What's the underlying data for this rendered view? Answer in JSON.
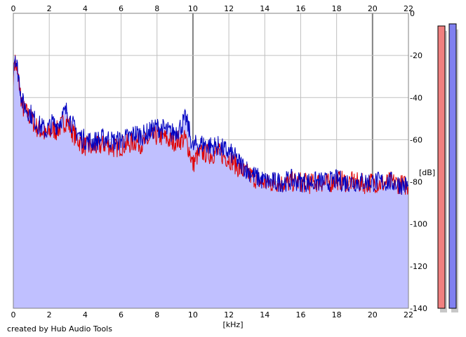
{
  "footer": {
    "credit": "created by Hub Audio Tools"
  },
  "chart_data": {
    "type": "line",
    "title": "",
    "xlabel": "[kHz]",
    "ylabel": "[dB]",
    "xlim": [
      0,
      22
    ],
    "ylim": [
      -140,
      0
    ],
    "x_ticks": [
      0,
      2,
      4,
      6,
      8,
      10,
      12,
      14,
      16,
      18,
      20,
      22
    ],
    "y_ticks": [
      0,
      -20,
      -40,
      -60,
      -80,
      -100,
      -120,
      -140
    ],
    "grid": true,
    "colors": {
      "red_series": "#e00000",
      "blue_series": "#0000c0",
      "fill": "#c0c0ff",
      "meter_red": "#f08080",
      "meter_blue": "#8080f0"
    },
    "series": [
      {
        "values_x": [
          0,
          0.1,
          0.2,
          0.3,
          0.4,
          0.5,
          0.6,
          0.8,
          1.0,
          1.2,
          1.4,
          1.6,
          1.8,
          2.0,
          2.2,
          2.4,
          2.6,
          2.8,
          3.0,
          3.2,
          3.4,
          3.6,
          3.8,
          4.0,
          4.4,
          4.8,
          5.2,
          5.6,
          6.0,
          6.4,
          6.8,
          7.2,
          7.6,
          8.0,
          8.4,
          8.8,
          9.2,
          9.6,
          9.8,
          10.0,
          10.2,
          10.6,
          11.0,
          11.4,
          11.8,
          12.2,
          12.6,
          13.0,
          13.4,
          13.8,
          14.2,
          14.6,
          15.0,
          15.5,
          16.0,
          16.5,
          17.0,
          17.5,
          18.0,
          18.5,
          19.0,
          19.5,
          20.0,
          20.5,
          21.0,
          21.5,
          22.0
        ],
        "values_y": [
          -30,
          -22,
          -28,
          -32,
          -38,
          -44,
          -46,
          -48,
          -50,
          -53,
          -55,
          -56,
          -58,
          -57,
          -55,
          -56,
          -54,
          -52,
          -51,
          -55,
          -58,
          -60,
          -62,
          -63,
          -64,
          -63,
          -62,
          -64,
          -63,
          -62,
          -61,
          -62,
          -60,
          -58,
          -59,
          -61,
          -60,
          -60,
          -65,
          -72,
          -68,
          -66,
          -67,
          -66,
          -68,
          -70,
          -74,
          -76,
          -78,
          -80,
          -81,
          -80,
          -81,
          -80,
          -80,
          -81,
          -80,
          -81,
          -79,
          -80,
          -80,
          -81,
          -80,
          -81,
          -80,
          -81,
          -82
        ]
      },
      {
        "values_x": [
          0,
          0.1,
          0.2,
          0.3,
          0.4,
          0.5,
          0.6,
          0.8,
          1.0,
          1.2,
          1.4,
          1.6,
          1.8,
          2.0,
          2.2,
          2.4,
          2.6,
          2.8,
          3.0,
          3.2,
          3.4,
          3.6,
          3.8,
          4.0,
          4.4,
          4.8,
          5.2,
          5.6,
          6.0,
          6.4,
          6.8,
          7.2,
          7.6,
          8.0,
          8.4,
          8.8,
          9.2,
          9.6,
          9.8,
          10.0,
          10.2,
          10.6,
          11.0,
          11.4,
          11.8,
          12.2,
          12.6,
          13.0,
          13.4,
          13.8,
          14.2,
          14.6,
          15.0,
          15.5,
          16.0,
          16.5,
          17.0,
          17.5,
          18.0,
          18.5,
          19.0,
          19.5,
          20.0,
          20.5,
          21.0,
          21.5,
          22.0
        ],
        "values_y": [
          -26,
          -19,
          -25,
          -30,
          -36,
          -42,
          -44,
          -46,
          -48,
          -51,
          -53,
          -54,
          -56,
          -54,
          -52,
          -53,
          -51,
          -48,
          -46,
          -51,
          -55,
          -57,
          -59,
          -60,
          -61,
          -60,
          -59,
          -61,
          -60,
          -59,
          -57,
          -58,
          -56,
          -54,
          -55,
          -57,
          -55,
          -50,
          -56,
          -64,
          -62,
          -62,
          -63,
          -63,
          -65,
          -67,
          -71,
          -74,
          -77,
          -79,
          -80,
          -80,
          -80,
          -79,
          -80,
          -80,
          -80,
          -80,
          -79,
          -80,
          -80,
          -80,
          -80,
          -80,
          -80,
          -81,
          -82
        ]
      }
    ],
    "meter": {
      "left_level_db": -6,
      "right_level_db": -5
    }
  }
}
